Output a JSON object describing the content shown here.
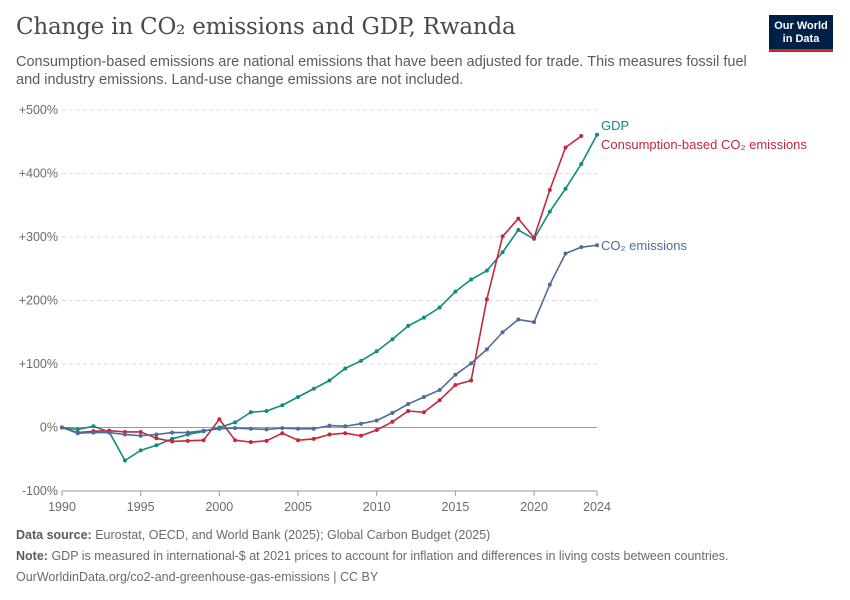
{
  "header": {
    "title": "Change in CO₂ emissions and GDP, Rwanda",
    "subtitle": "Consumption-based emissions are national emissions that have been adjusted for trade. This measures fossil fuel and industry emissions. Land-use change emissions are not included.",
    "logo_line1": "Our World",
    "logo_line2": "in Data"
  },
  "colors": {
    "gdp": "#0f8c7e",
    "consumption": "#c4283c",
    "co2": "#4f6b9a",
    "grid": "#dddddd",
    "zero": "#999999"
  },
  "chart_data": {
    "type": "line",
    "title": "Change in CO₂ emissions and GDP, Rwanda",
    "xlabel": "",
    "ylabel": "",
    "xlim": [
      1990,
      2024
    ],
    "ylim": [
      -100,
      500
    ],
    "x_ticks": [
      1990,
      1995,
      2000,
      2005,
      2010,
      2015,
      2020,
      2024
    ],
    "y_ticks": [
      -100,
      0,
      100,
      200,
      300,
      400,
      500
    ],
    "y_tick_labels": [
      "-100%",
      "0%",
      "+100%",
      "+200%",
      "+300%",
      "+400%",
      "+500%"
    ],
    "series": [
      {
        "name": "GDP",
        "key": "gdp",
        "x": [
          1990,
          1991,
          1992,
          1993,
          1994,
          1995,
          1996,
          1997,
          1998,
          1999,
          2000,
          2001,
          2002,
          2003,
          2004,
          2005,
          2006,
          2007,
          2008,
          2009,
          2010,
          2011,
          2012,
          2013,
          2014,
          2015,
          2016,
          2017,
          2018,
          2019,
          2020,
          2021,
          2022,
          2023,
          2024
        ],
        "values": [
          0,
          -3,
          2,
          -7,
          -52,
          -36,
          -28,
          -18,
          -11,
          -6,
          0,
          8,
          24,
          26,
          35,
          48,
          61,
          74,
          93,
          105,
          120,
          139,
          160,
          173,
          189,
          214,
          233,
          247,
          276,
          311,
          297,
          340,
          376,
          415,
          461
        ]
      },
      {
        "name": "Consumption-based CO₂ emissions",
        "key": "consumption",
        "x": [
          1990,
          1991,
          1992,
          1993,
          1994,
          1995,
          1996,
          1997,
          1998,
          1999,
          2000,
          2001,
          2002,
          2003,
          2004,
          2005,
          2006,
          2007,
          2008,
          2009,
          2010,
          2011,
          2012,
          2013,
          2014,
          2015,
          2016,
          2017,
          2018,
          2019,
          2020,
          2021,
          2022,
          2023
        ],
        "values": [
          0,
          -8,
          -6,
          -5,
          -7,
          -7,
          -17,
          -22,
          -21,
          -20,
          13,
          -20,
          -23,
          -21,
          -9,
          -20,
          -18,
          -11,
          -9,
          -13,
          -4,
          9,
          26,
          24,
          43,
          67,
          74,
          202,
          301,
          329,
          299,
          374,
          441,
          459
        ]
      },
      {
        "name": "CO₂ emissions",
        "key": "co2",
        "x": [
          1990,
          1991,
          1992,
          1993,
          1994,
          1995,
          1996,
          1997,
          1998,
          1999,
          2000,
          2001,
          2002,
          2003,
          2004,
          2005,
          2006,
          2007,
          2008,
          2009,
          2010,
          2011,
          2012,
          2013,
          2014,
          2015,
          2016,
          2017,
          2018,
          2019,
          2020,
          2021,
          2022,
          2023,
          2024
        ],
        "values": [
          0,
          -9,
          -8,
          -8,
          -11,
          -13,
          -11,
          -8,
          -8,
          -5,
          -2,
          -1,
          -2,
          -3,
          -1,
          -2,
          -2,
          3,
          2,
          6,
          11,
          23,
          37,
          48,
          59,
          83,
          101,
          123,
          150,
          170,
          166,
          225,
          274,
          284,
          287
        ]
      }
    ]
  },
  "footer": {
    "source_label": "Data source:",
    "source_text": "Eurostat, OECD, and World Bank (2025); Global Carbon Budget (2025)",
    "note_label": "Note:",
    "note_text": "GDP is measured in international-$ at 2021 prices to account for inflation and differences in living costs between countries.",
    "url_text": "OurWorldinData.org/co2-and-greenhouse-gas-emissions | CC BY"
  }
}
